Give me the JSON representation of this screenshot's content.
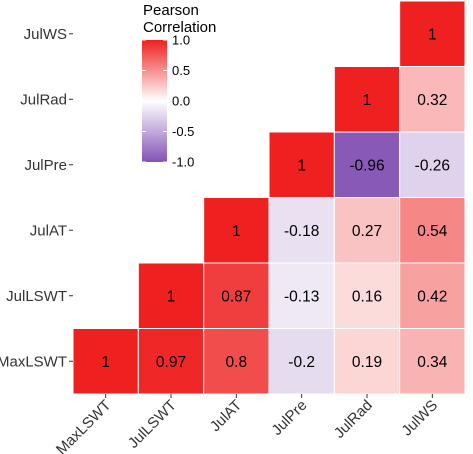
{
  "chart_data": {
    "type": "heatmap",
    "layout": "lower-triangle correlation matrix",
    "variables": [
      "MaxLSWT",
      "JulLSWT",
      "JulAT",
      "JulPre",
      "JulRad",
      "JulWS"
    ],
    "x_tick_labels": [
      "MaxLSWT",
      "JulLSWT",
      "JulAT",
      "JulPre",
      "JulRad",
      "JulWS"
    ],
    "y_tick_labels": [
      "MaxLSWT",
      "JulLSWT",
      "JulAT",
      "JulPre",
      "JulRad",
      "JulWS"
    ],
    "cells": [
      {
        "x": "MaxLSWT",
        "y": "MaxLSWT",
        "value": 1,
        "label": "1"
      },
      {
        "x": "JulLSWT",
        "y": "MaxLSWT",
        "value": 0.97,
        "label": "0.97"
      },
      {
        "x": "JulAT",
        "y": "MaxLSWT",
        "value": 0.8,
        "label": "0.8"
      },
      {
        "x": "JulPre",
        "y": "MaxLSWT",
        "value": -0.2,
        "label": "-0.2"
      },
      {
        "x": "JulRad",
        "y": "MaxLSWT",
        "value": 0.19,
        "label": "0.19"
      },
      {
        "x": "JulWS",
        "y": "MaxLSWT",
        "value": 0.34,
        "label": "0.34"
      },
      {
        "x": "JulLSWT",
        "y": "JulLSWT",
        "value": 1,
        "label": "1"
      },
      {
        "x": "JulAT",
        "y": "JulLSWT",
        "value": 0.87,
        "label": "0.87"
      },
      {
        "x": "JulPre",
        "y": "JulLSWT",
        "value": -0.13,
        "label": "-0.13"
      },
      {
        "x": "JulRad",
        "y": "JulLSWT",
        "value": 0.16,
        "label": "0.16"
      },
      {
        "x": "JulWS",
        "y": "JulLSWT",
        "value": 0.42,
        "label": "0.42"
      },
      {
        "x": "JulAT",
        "y": "JulAT",
        "value": 1,
        "label": "1"
      },
      {
        "x": "JulPre",
        "y": "JulAT",
        "value": -0.18,
        "label": "-0.18"
      },
      {
        "x": "JulRad",
        "y": "JulAT",
        "value": 0.27,
        "label": "0.27"
      },
      {
        "x": "JulWS",
        "y": "JulAT",
        "value": 0.54,
        "label": "0.54"
      },
      {
        "x": "JulPre",
        "y": "JulPre",
        "value": 1,
        "label": "1"
      },
      {
        "x": "JulRad",
        "y": "JulPre",
        "value": -0.96,
        "label": "-0.96"
      },
      {
        "x": "JulWS",
        "y": "JulPre",
        "value": -0.26,
        "label": "-0.26"
      },
      {
        "x": "JulRad",
        "y": "JulRad",
        "value": 1,
        "label": "1"
      },
      {
        "x": "JulWS",
        "y": "JulRad",
        "value": 0.32,
        "label": "0.32"
      },
      {
        "x": "JulWS",
        "y": "JulWS",
        "value": 1,
        "label": "1"
      }
    ],
    "legend": {
      "title_lines": [
        "Pearson",
        "Correlation"
      ],
      "position": "top-left",
      "ticks": [
        1.0,
        0.5,
        0.0,
        -0.5,
        -1.0
      ],
      "tick_labels": [
        "1.0",
        "0.5",
        "0.0",
        "-0.5",
        "-1.0"
      ],
      "range": [
        -1,
        1
      ]
    },
    "colors": {
      "high": "#ee2020",
      "mid": "#ffffff",
      "low": "#8452b5",
      "grid_line": "#ffffff"
    },
    "x_tick_rotation_deg": -45
  }
}
